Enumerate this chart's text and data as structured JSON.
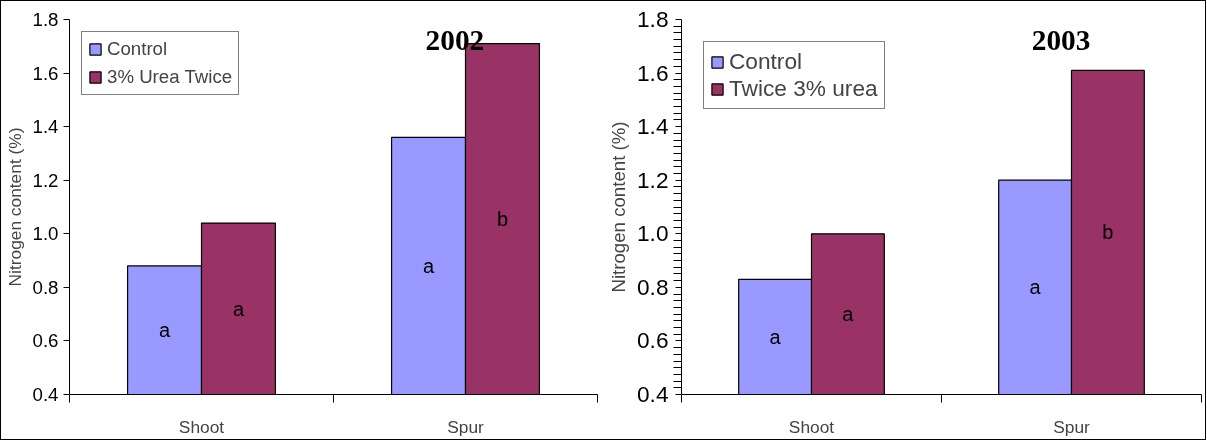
{
  "chart_data": [
    {
      "type": "bar",
      "title": "2002",
      "ylabel": "Nitrogen content (%)",
      "categories": [
        "Shoot",
        "Spur"
      ],
      "ylim": [
        0.4,
        1.8
      ],
      "yticks": [
        {
          "value": 0.4,
          "label": "0.4"
        },
        {
          "value": 0.6,
          "label": "0.6"
        },
        {
          "value": 0.8,
          "label": "0.8"
        },
        {
          "value": 1.0,
          "label": "1.0"
        },
        {
          "value": 1.2,
          "label": "1.2"
        },
        {
          "value": 1.4,
          "label": "1.4"
        },
        {
          "value": 1.6,
          "label": "1.6"
        },
        {
          "value": 1.8,
          "label": "1.8"
        }
      ],
      "grid": false,
      "legend": "top left",
      "series": [
        {
          "name": "Control",
          "color": "#9999ff",
          "values": [
            0.88,
            1.36
          ],
          "value_labels": [
            "a",
            "a"
          ]
        },
        {
          "name": "3% Urea Twice",
          "color": "#993366",
          "values": [
            1.04,
            1.71
          ],
          "value_labels": [
            "a",
            "b"
          ]
        }
      ]
    },
    {
      "type": "bar",
      "title": "2003",
      "ylabel": "Nitrogen content (%)",
      "categories": [
        "Shoot",
        "Spur"
      ],
      "ylim": [
        0.4,
        1.8
      ],
      "yticks": [
        {
          "value": 0.4,
          "label": "0.4"
        },
        {
          "value": 0.6,
          "label": "0.6"
        },
        {
          "value": 0.8,
          "label": "0.8"
        },
        {
          "value": 1.0,
          "label": "1.0"
        },
        {
          "value": 1.2,
          "label": "1.2"
        },
        {
          "value": 1.4,
          "label": "1.4"
        },
        {
          "value": 1.6,
          "label": "1.6"
        },
        {
          "value": 1.8,
          "label": "1.8"
        }
      ],
      "grid": false,
      "legend": "top left",
      "series": [
        {
          "name": "Control",
          "color": "#9999ff",
          "values": [
            0.83,
            1.2
          ],
          "value_labels": [
            "a",
            "a"
          ]
        },
        {
          "name": "Twice 3% urea",
          "color": "#993366",
          "values": [
            1.0,
            1.61
          ],
          "value_labels": [
            "a",
            "b"
          ]
        }
      ]
    }
  ]
}
